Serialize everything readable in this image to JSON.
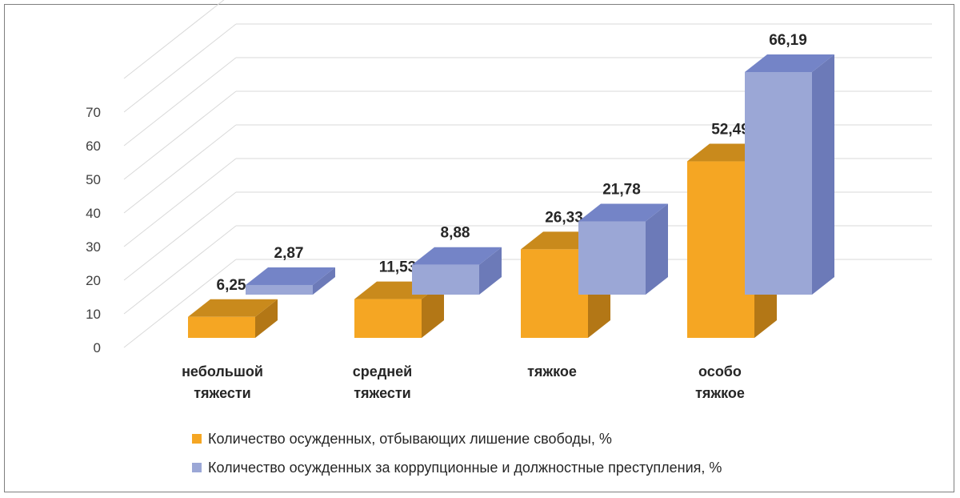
{
  "chart_data": {
    "type": "bar",
    "title": "",
    "xlabel": "",
    "ylabel": "",
    "ylim": [
      0,
      70
    ],
    "yticks": [
      "0",
      "10",
      "20",
      "30",
      "40",
      "50",
      "60",
      "70"
    ],
    "categories": [
      [
        "небольшой",
        "тяжести"
      ],
      [
        "средней",
        "тяжести"
      ],
      [
        "тяжкое"
      ],
      [
        "особо",
        "тяжкое"
      ]
    ],
    "series": [
      {
        "name": "Количество осужденных, отбывающих лишение свободы, %",
        "values": [
          6.25,
          11.53,
          26.33,
          52.49
        ],
        "labels": [
          "6,25",
          "11,53",
          "26,33",
          "52,49"
        ],
        "color": "#f5a623"
      },
      {
        "name": "Количество осужденных за коррупционные и должностные преступления, %",
        "values": [
          2.87,
          8.88,
          21.78,
          66.19
        ],
        "labels": [
          "2,87",
          "8,88",
          "21,78",
          "66,19"
        ],
        "color": "#9ba7d6"
      }
    ],
    "grid": true,
    "legend_position": "bottom",
    "style": "3d-clustered-column"
  }
}
